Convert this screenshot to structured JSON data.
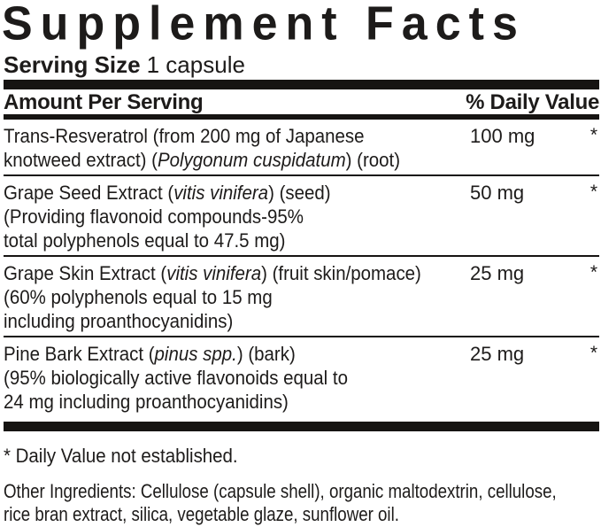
{
  "label": {
    "title": "Supplement Facts",
    "serving": {
      "label": "Serving Size",
      "value": "1 capsule"
    },
    "table": {
      "header": {
        "amount_col": "Amount Per Serving",
        "daily_value_col": "% Daily Value"
      },
      "rows": [
        {
          "name_lines": [
            "Trans-Resveratrol (from 200 mg of Japanese",
            "knotweed extract) (*Polygonum cuspidatum*) (root)"
          ],
          "amount": "100 mg",
          "daily_value": "*"
        },
        {
          "name_lines": [
            "Grape Seed Extract (*vitis vinifera*) (seed)",
            "(Providing flavonoid compounds-95%",
            "total polyphenols equal to 47.5 mg)"
          ],
          "amount": "50 mg",
          "daily_value": "*"
        },
        {
          "name_lines": [
            "Grape Skin Extract (*vitis vinifera*) (fruit skin/pomace)",
            "(60% polyphenols equal to 15 mg",
            "including proanthocyanidins)"
          ],
          "amount": "25 mg",
          "daily_value": "*"
        },
        {
          "name_lines": [
            "Pine Bark Extract (*pinus spp.*) (bark)",
            "(95% biologically active flavonoids equal to",
            "24 mg including proanthocyanidins)"
          ],
          "amount": "25 mg",
          "daily_value": "*"
        }
      ]
    },
    "footnote": "* Daily Value not established.",
    "other_ingredients_lines": [
      "Other Ingredients: Cellulose (capsule shell), organic maltodextrin, cellulose,",
      "rice bran extract, silica, vegetable glaze, sunflower oil."
    ],
    "colors": {
      "text": "#1d1b1a",
      "rule": "#161412",
      "background": "#ffffff"
    }
  }
}
